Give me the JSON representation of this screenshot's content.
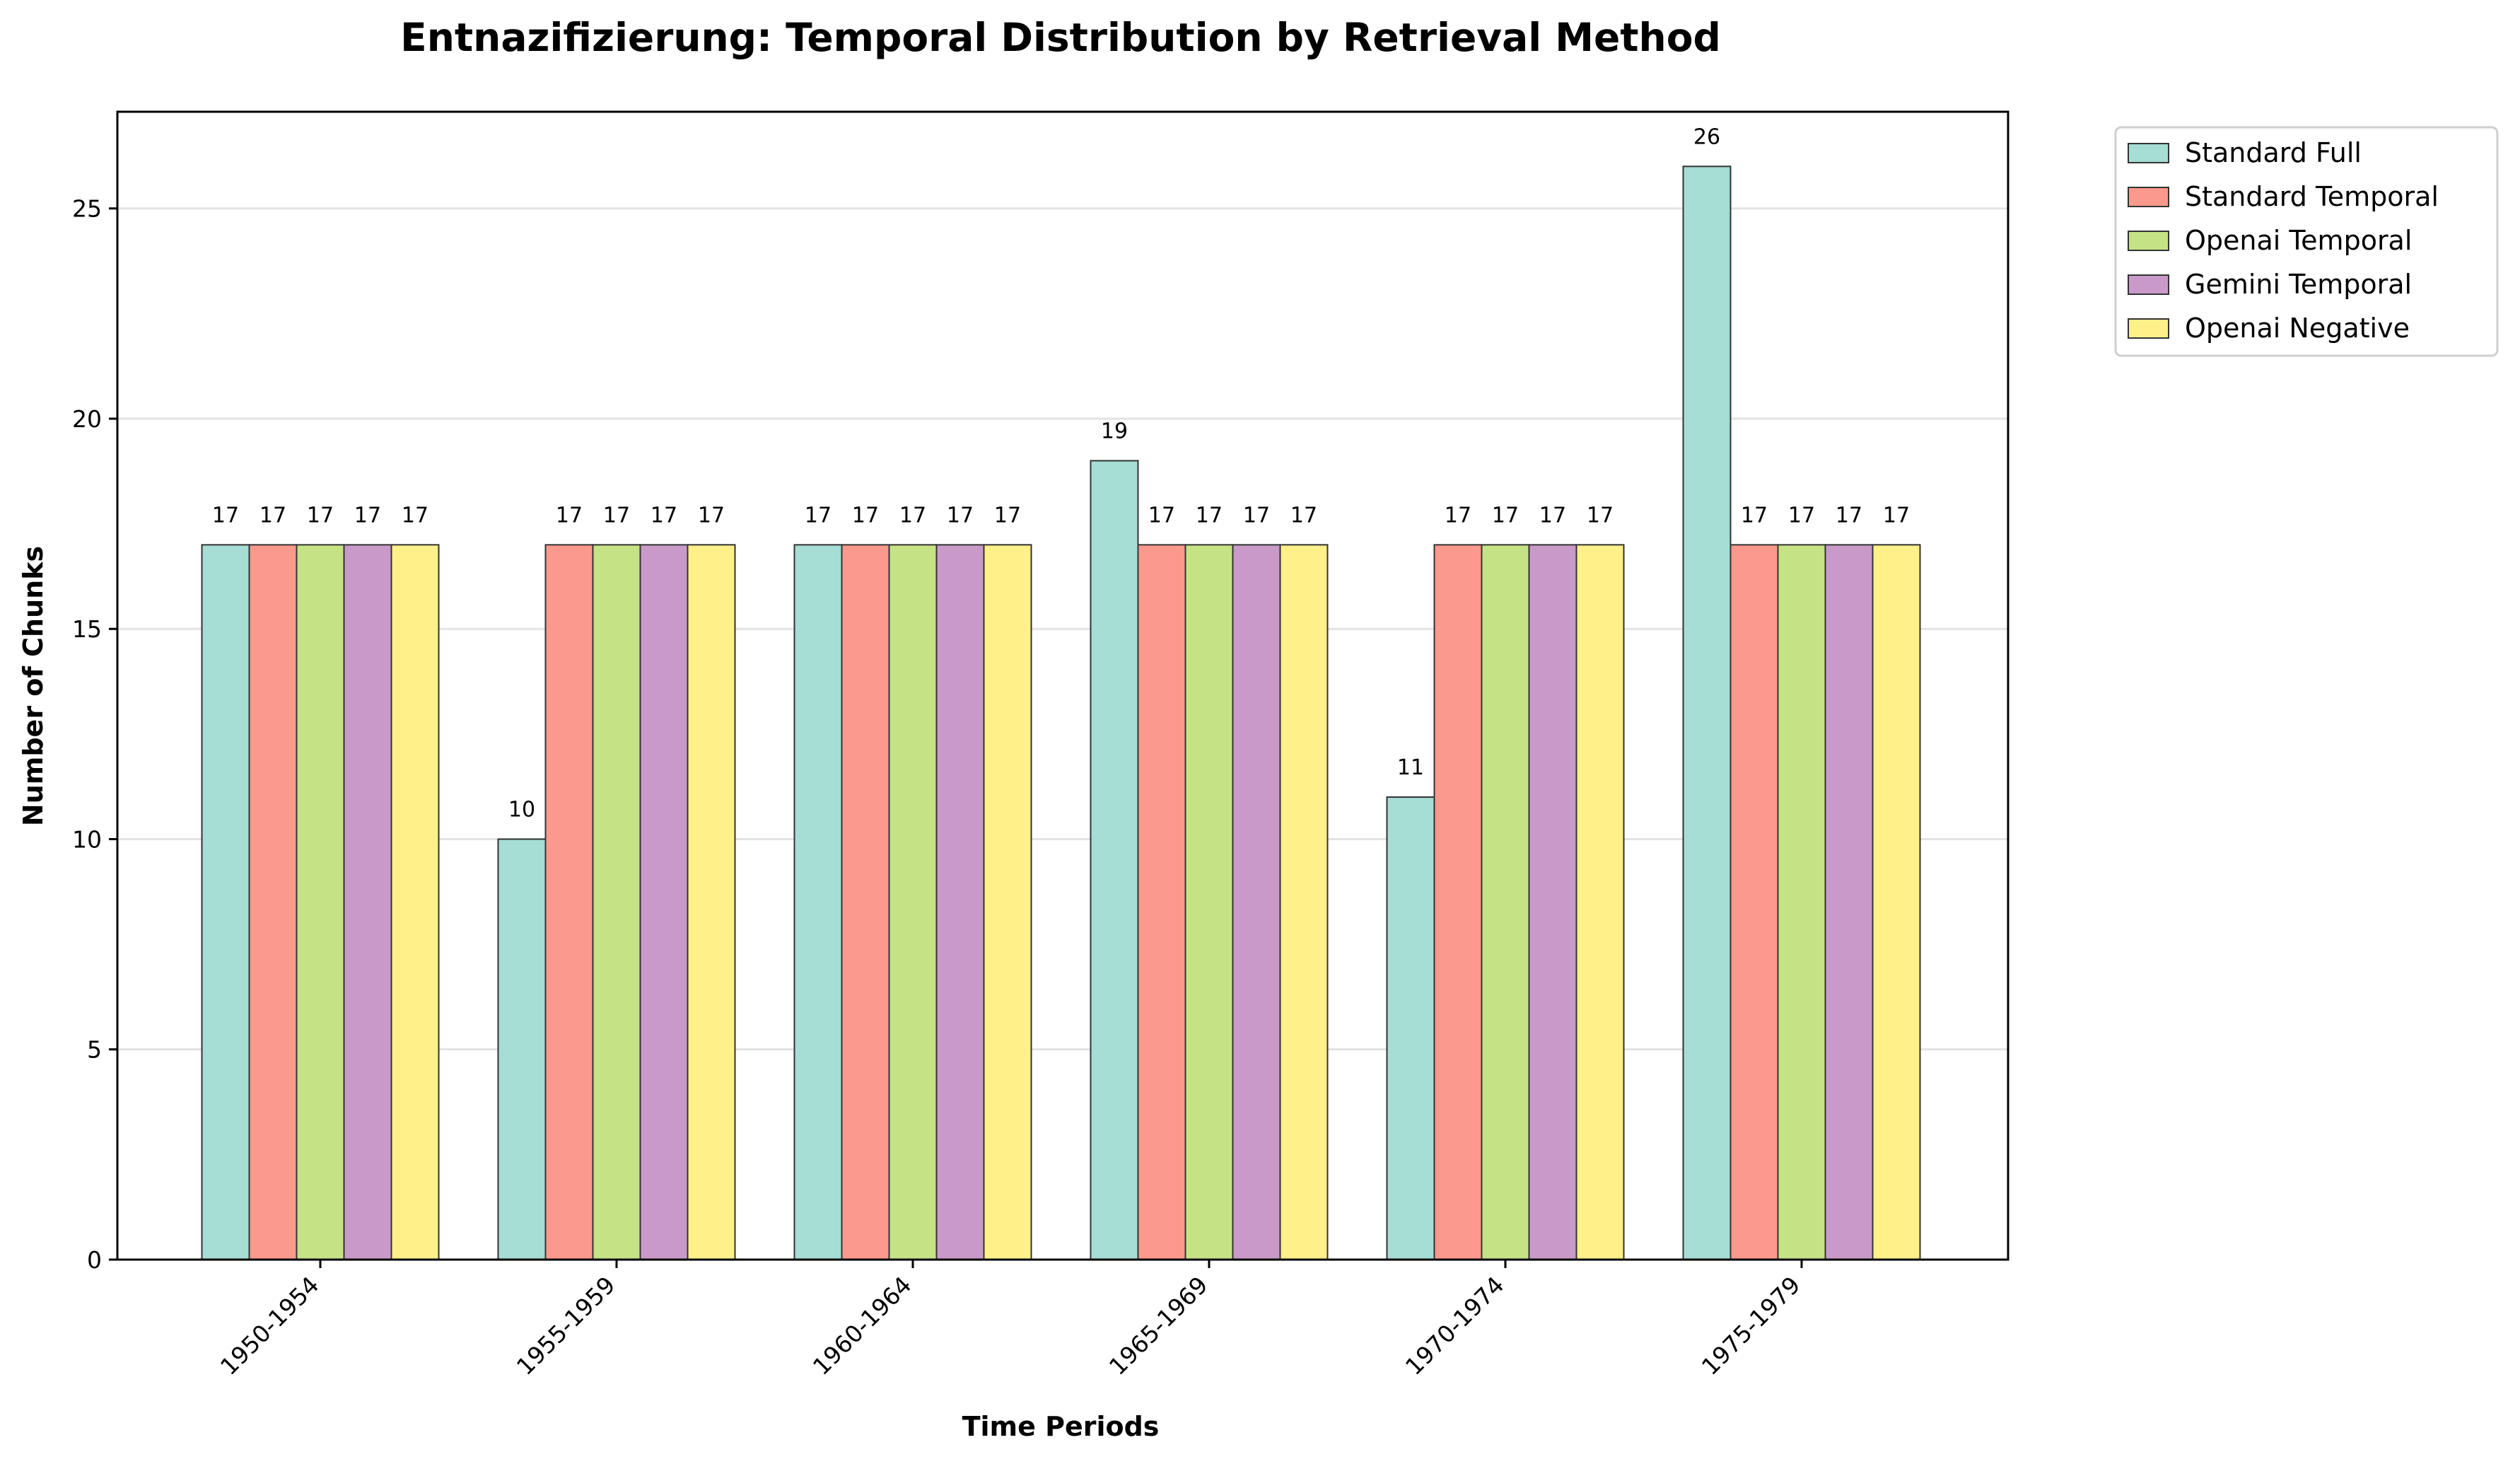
{
  "chart_data": {
    "type": "bar",
    "title": "Entnazifizierung: Temporal Distribution by Retrieval Method",
    "xlabel": "Time Periods",
    "ylabel": "Number of Chunks",
    "categories": [
      "1950-1954",
      "1955-1959",
      "1960-1964",
      "1965-1969",
      "1970-1974",
      "1975-1979"
    ],
    "series": [
      {
        "name": "Standard Full",
        "color": "#a6ddd4",
        "values": [
          17,
          10,
          17,
          19,
          11,
          26
        ]
      },
      {
        "name": "Standard Temporal",
        "color": "#fb998c",
        "values": [
          17,
          17,
          17,
          17,
          17,
          17
        ]
      },
      {
        "name": "Openai Temporal",
        "color": "#c5e384",
        "values": [
          17,
          17,
          17,
          17,
          17,
          17
        ]
      },
      {
        "name": "Gemini Temporal",
        "color": "#c99ac9",
        "values": [
          17,
          17,
          17,
          17,
          17,
          17
        ]
      },
      {
        "name": "Openai Negative",
        "color": "#fff08a",
        "values": [
          17,
          17,
          17,
          17,
          17,
          17
        ]
      }
    ],
    "ylim": [
      0,
      27.3
    ],
    "yticks": [
      0,
      5,
      10,
      15,
      20,
      25
    ],
    "grid": "y",
    "legend": "outside-top-right"
  }
}
